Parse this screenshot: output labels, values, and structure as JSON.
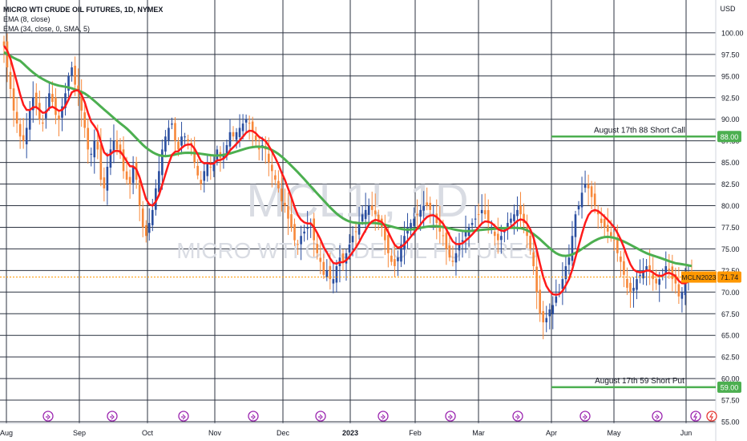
{
  "header": {
    "title": "MICRO WTI CRUDE OIL FUTURES, 1D, NYMEX",
    "indicator1": "EMA (8, close)",
    "indicator2": "EMA (34, close, 0, SMA, 5)"
  },
  "watermark": {
    "symbol": "MCL1!, 1D",
    "name": "MICRO WTI CRUDE OIL FUTURES"
  },
  "colors": {
    "up": "#2a4ea0",
    "down": "#f7883a",
    "ema8": "#ff1a1a",
    "ema34": "#4caf50",
    "level_line": "#4caf50",
    "last_price": "#ff9800"
  },
  "chart_data": {
    "type": "candlestick",
    "y_unit": "USD",
    "ylim": [
      55,
      105
    ],
    "y_ticks": [
      55.0,
      57.5,
      60.0,
      62.5,
      65.0,
      67.5,
      70.0,
      72.5,
      75.0,
      77.5,
      80.0,
      82.5,
      85.0,
      87.5,
      90.0,
      92.5,
      95.0,
      97.5,
      100.0
    ],
    "x_ticks": [
      "Aug",
      "Sep",
      "Oct",
      "Nov",
      "Dec",
      "2023",
      "Feb",
      "Mar",
      "Apr",
      "May",
      "Jun"
    ],
    "closes": [
      98.5,
      96.0,
      93.5,
      91.0,
      89.5,
      88.0,
      87.5,
      89.0,
      91.0,
      92.5,
      91.5,
      90.0,
      89.5,
      91.0,
      93.0,
      92.0,
      90.5,
      90.0,
      91.5,
      93.0,
      95.0,
      96.0,
      94.0,
      93.5,
      91.0,
      89.0,
      86.5,
      86.0,
      87.5,
      86.5,
      83.0,
      82.0,
      84.5,
      86.5,
      87.5,
      86.5,
      86.0,
      84.0,
      83.0,
      82.5,
      84.5,
      83.0,
      80.0,
      77.5,
      76.5,
      78.0,
      79.5,
      82.0,
      84.0,
      86.5,
      88.0,
      89.0,
      89.5,
      87.5,
      86.5,
      88.0,
      88.0,
      87.5,
      87.0,
      85.0,
      83.5,
      82.5,
      84.0,
      85.0,
      84.5,
      85.0,
      86.5,
      85.5,
      86.0,
      87.0,
      88.5,
      88.0,
      88.5,
      89.0,
      89.5,
      90.0,
      89.5,
      88.5,
      87.5,
      86.5,
      87.0,
      86.5,
      85.0,
      84.0,
      83.0,
      82.0,
      80.5,
      80.0,
      78.5,
      77.5,
      76.0,
      75.5,
      76.5,
      77.0,
      77.5,
      78.0,
      76.0,
      74.5,
      73.5,
      72.0,
      72.5,
      71.5,
      71.5,
      73.0,
      74.0,
      73.5,
      74.5,
      75.5,
      76.5,
      77.0,
      78.0,
      79.0,
      79.5,
      80.0,
      79.5,
      79.0,
      78.0,
      77.5,
      76.0,
      74.5,
      73.5,
      73.0,
      74.0,
      75.5,
      76.5,
      77.5,
      78.0,
      78.5,
      79.0,
      79.5,
      80.0,
      80.0,
      79.5,
      79.0,
      78.0,
      77.0,
      76.5,
      75.0,
      74.0,
      73.5,
      74.5,
      75.5,
      76.0,
      77.0,
      77.5,
      78.0,
      78.5,
      79.0,
      79.5,
      79.0,
      78.0,
      77.5,
      76.5,
      76.0,
      76.5,
      77.0,
      78.0,
      78.5,
      79.0,
      79.5,
      79.0,
      78.0,
      76.5,
      75.0,
      73.0,
      70.0,
      67.5,
      66.5,
      67.0,
      68.0,
      68.5,
      69.5,
      70.0,
      71.5,
      73.0,
      74.0,
      76.5,
      79.0,
      80.0,
      81.5,
      82.5,
      82.0,
      81.0,
      80.0,
      79.0,
      78.0,
      77.5,
      77.0,
      76.5,
      76.0,
      74.5,
      73.5,
      72.0,
      70.5,
      70.0,
      70.5,
      71.5,
      72.0,
      72.5,
      73.0,
      72.5,
      71.5,
      71.0,
      71.5,
      72.0,
      73.0,
      72.5,
      71.5,
      71.0,
      69.5,
      70.0,
      71.0,
      72.0,
      71.7
    ],
    "ema_labels": [
      "EMA 8",
      "EMA 34"
    ],
    "annotations": [
      {
        "label": "August 17th 88 Short Call",
        "level": 88.0,
        "level_text": "88.00"
      },
      {
        "label": "August 17th 59 Short Put",
        "level": 59.0,
        "level_text": "59.00"
      }
    ],
    "last_price": {
      "symbol": "MCLN2023",
      "value_text": "71.74",
      "value": 71.74
    },
    "grid": true
  }
}
